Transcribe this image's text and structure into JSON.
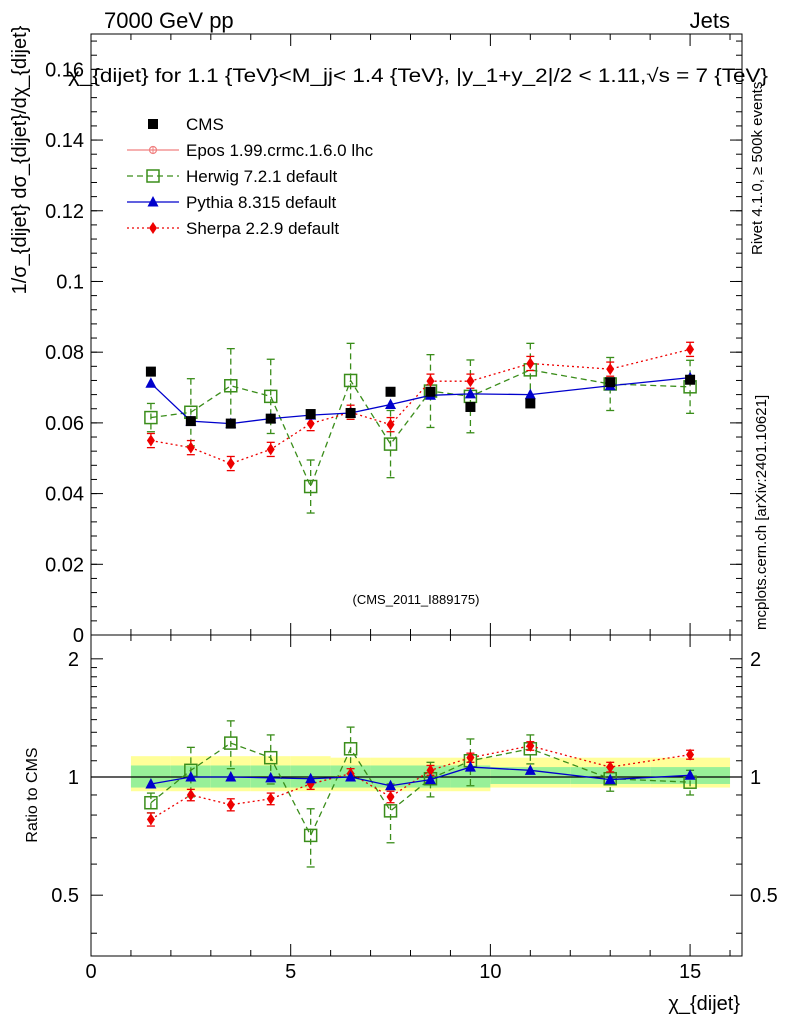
{
  "header": {
    "left": "7000 GeV pp",
    "right": "Jets",
    "title": "χ_{dijet} for 1.1 {TeV}<M_jj< 1.4 {TeV}, |y_1+y_2|/2 < 1.11,√s = 7 {TeV}",
    "side_top": "Rivet 4.1.0, ≥ 500k events",
    "side_bottom": "mcplots.cern.ch [arXiv:2401.10621]",
    "watermark": "(CMS_2011_I889175)"
  },
  "chart_data": [
    {
      "type": "scatter",
      "panel": "main",
      "ylabel": "1/σ_{dijet} dσ_{dijet}/dχ_{dijet}",
      "xlabel": "χ_{dijet}",
      "xlim": [
        0,
        16.3
      ],
      "ylim": [
        0,
        0.17
      ],
      "yticks": [
        0,
        0.02,
        0.04,
        0.06,
        0.08,
        0.1,
        0.12,
        0.14,
        0.16
      ],
      "ytick_labels": [
        "0",
        "0.02",
        "0.04",
        "0.06",
        "0.08",
        "0.1",
        "0.12",
        "0.14",
        "0.16"
      ],
      "x": [
        1.5,
        2.5,
        3.5,
        4.5,
        5.5,
        6.5,
        7.5,
        8.5,
        9.5,
        11.0,
        13.0,
        15.0
      ],
      "bin_edges": [
        1,
        2,
        3,
        4,
        5,
        6,
        7,
        8,
        9,
        10,
        12,
        14,
        16
      ],
      "legend_position": "top-left",
      "series": [
        {
          "name": "CMS",
          "color": "#000000",
          "marker": "square",
          "line": "none",
          "values": [
            0.0745,
            0.0605,
            0.0598,
            0.0612,
            0.0625,
            0.0628,
            0.0688,
            0.0688,
            0.0645,
            0.0655,
            0.0715,
            0.0722
          ]
        },
        {
          "name": "Epos 1.99.crmc.1.6.0 lhc",
          "color": "#f08080",
          "marker": "open-circle-cross",
          "line": "solid",
          "values": []
        },
        {
          "name": "Herwig 7.2.1 default",
          "color": "#3a8d1a",
          "marker": "open-square",
          "line": "dashed",
          "values": [
            0.0615,
            0.063,
            0.0705,
            0.0675,
            0.042,
            0.072,
            0.054,
            0.069,
            0.0675,
            0.075,
            0.071,
            0.0702
          ],
          "errors": [
            0.004,
            0.0095,
            0.0105,
            0.0105,
            0.0075,
            0.0105,
            0.0095,
            0.0103,
            0.0103,
            0.0075,
            0.0075,
            0.0075
          ]
        },
        {
          "name": "Pythia 8.315 default",
          "color": "#0000cc",
          "marker": "triangle",
          "line": "solid",
          "values": [
            0.0712,
            0.0605,
            0.0598,
            0.0612,
            0.0622,
            0.0628,
            0.0652,
            0.0678,
            0.0682,
            0.068,
            0.0705,
            0.0728
          ]
        },
        {
          "name": "Sherpa 2.2.9 default",
          "color": "#ee0000",
          "marker": "diamond",
          "line": "dotted",
          "values": [
            0.055,
            0.053,
            0.0485,
            0.0525,
            0.0598,
            0.063,
            0.0595,
            0.0718,
            0.0718,
            0.0768,
            0.0752,
            0.0808
          ],
          "errors": [
            0.002,
            0.002,
            0.002,
            0.002,
            0.002,
            0.002,
            0.002,
            0.002,
            0.002,
            0.002,
            0.002,
            0.002
          ]
        }
      ]
    },
    {
      "type": "scatter",
      "panel": "ratio",
      "ylabel": "Ratio to CMS",
      "xlabel": "χ_{dijet}",
      "xlim": [
        0,
        16.3
      ],
      "ylim": [
        0.35,
        2.3
      ],
      "ytick_labels": [
        "0.5",
        "1",
        "2"
      ],
      "yticks": [
        0.5,
        1,
        2
      ],
      "xticks": [
        0,
        5,
        10,
        15
      ],
      "xtick_labels": [
        "0",
        "5",
        "10",
        "15"
      ],
      "x": [
        1.5,
        2.5,
        3.5,
        4.5,
        5.5,
        6.5,
        7.5,
        8.5,
        9.5,
        11.0,
        13.0,
        15.0
      ],
      "bands": {
        "stat_color": "#98f098",
        "total_color": "#ffff99",
        "bin_edges": [
          1,
          2,
          3,
          4,
          5,
          6,
          7,
          8,
          9,
          10,
          12,
          14,
          16
        ],
        "stat_low": [
          0.94,
          0.94,
          0.94,
          0.94,
          0.94,
          0.94,
          0.94,
          0.94,
          0.94,
          0.96,
          0.96,
          0.96
        ],
        "stat_high": [
          1.07,
          1.07,
          1.07,
          1.07,
          1.07,
          1.07,
          1.07,
          1.07,
          1.07,
          1.06,
          1.06,
          1.06
        ],
        "total_low": [
          0.92,
          0.92,
          0.92,
          0.92,
          0.92,
          0.92,
          0.92,
          0.92,
          0.92,
          0.94,
          0.94,
          0.94
        ],
        "total_high": [
          1.13,
          1.13,
          1.13,
          1.13,
          1.13,
          1.12,
          1.12,
          1.12,
          1.12,
          1.12,
          1.12,
          1.12
        ]
      },
      "series": [
        {
          "name": "Herwig 7.2.1 default",
          "color": "#3a8d1a",
          "marker": "open-square",
          "line": "dashed",
          "values": [
            0.86,
            1.04,
            1.22,
            1.12,
            0.71,
            1.18,
            0.82,
            0.99,
            1.1,
            1.18,
            0.99,
            0.97
          ],
          "errors": [
            0.05,
            0.15,
            0.17,
            0.16,
            0.12,
            0.16,
            0.14,
            0.1,
            0.15,
            0.1,
            0.07,
            0.07
          ]
        },
        {
          "name": "Pythia 8.315 default",
          "color": "#0000cc",
          "marker": "triangle",
          "line": "solid",
          "values": [
            0.96,
            1.0,
            1.0,
            0.995,
            0.99,
            1.0,
            0.95,
            0.985,
            1.06,
            1.04,
            0.985,
            1.01
          ]
        },
        {
          "name": "Sherpa 2.2.9 default",
          "color": "#ee0000",
          "marker": "diamond",
          "line": "dotted",
          "values": [
            0.78,
            0.9,
            0.85,
            0.88,
            0.96,
            1.02,
            0.89,
            1.04,
            1.12,
            1.2,
            1.06,
            1.14
          ],
          "errors": [
            0.03,
            0.03,
            0.03,
            0.03,
            0.03,
            0.03,
            0.03,
            0.03,
            0.03,
            0.03,
            0.03,
            0.03
          ]
        }
      ]
    }
  ]
}
